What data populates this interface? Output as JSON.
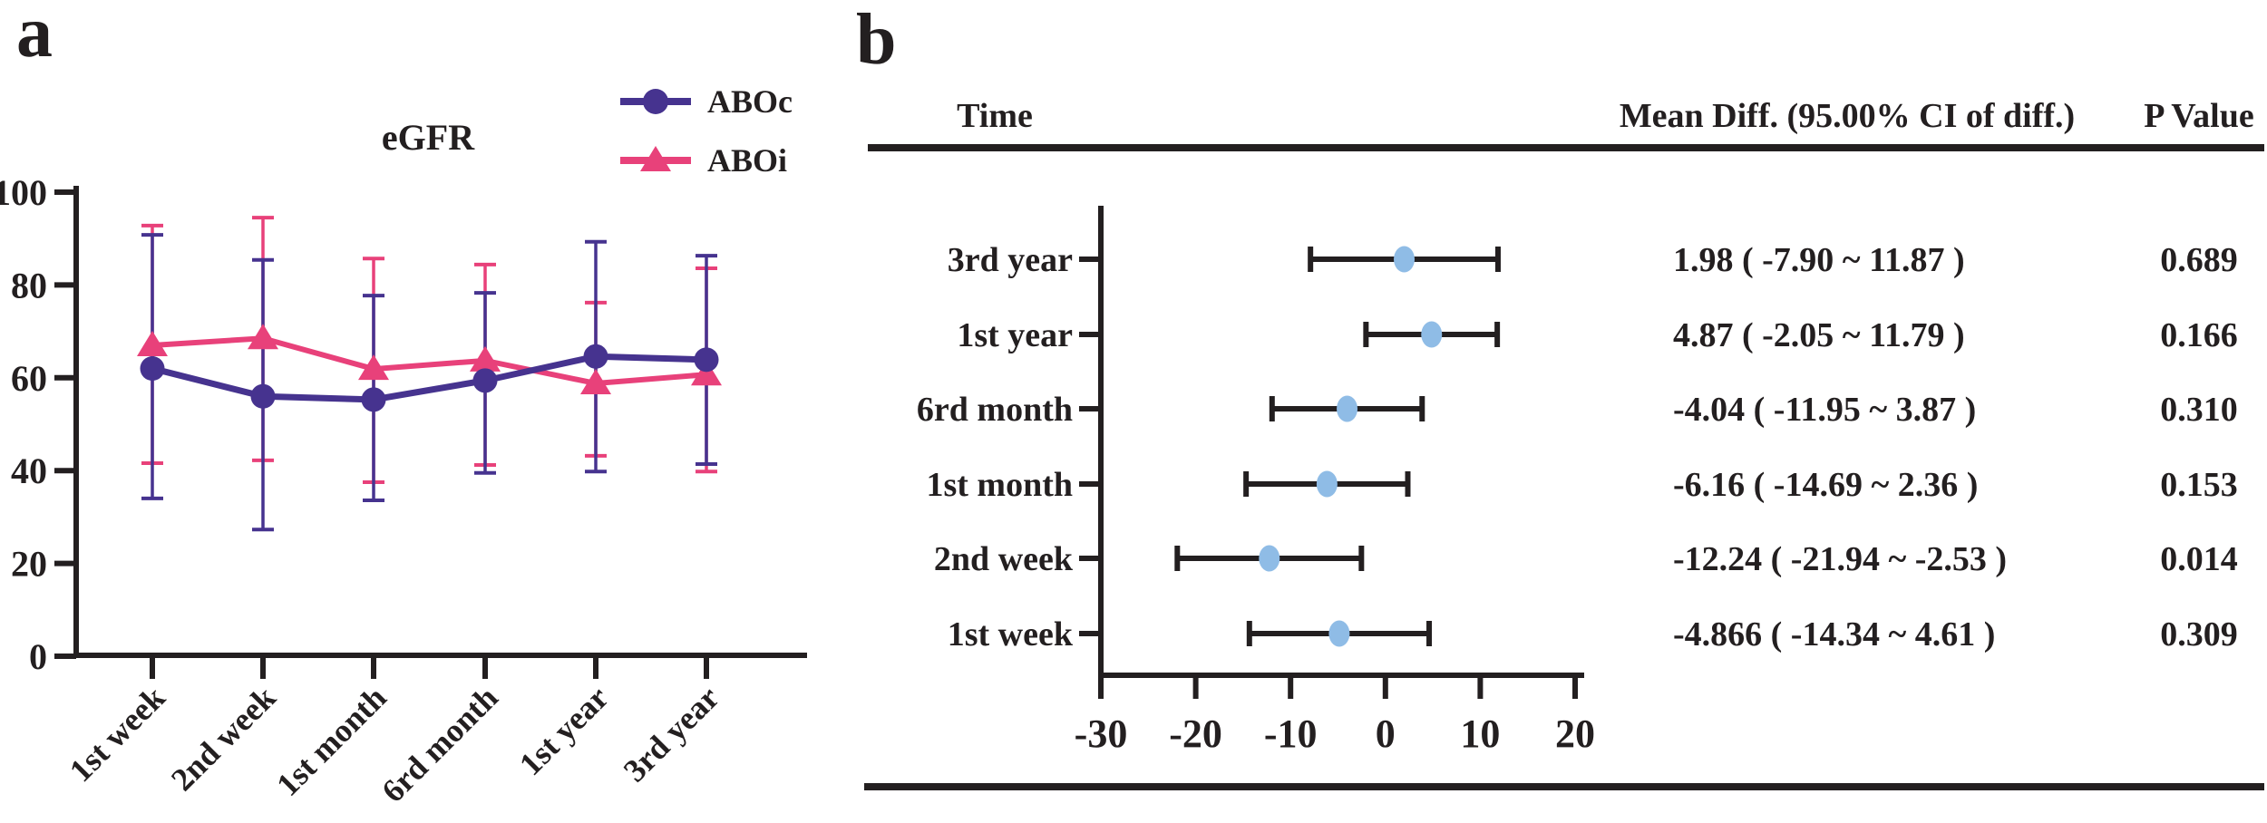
{
  "figure": {
    "panel_a_label": "a",
    "panel_b_label": "b"
  },
  "colors": {
    "aboc_purple": "#46338f",
    "aboi_pink": "#e8417a",
    "forest_dot_blue": "#8fbce6",
    "ink_black": "#231f20"
  },
  "chart_data": [
    {
      "id": "egfr_line_chart",
      "type": "line",
      "title": "eGFR",
      "categories": [
        "1st week",
        "2nd week",
        "1st month",
        "6rd month",
        "1st year",
        "3rd year"
      ],
      "ylim": [
        0,
        100
      ],
      "yticks": [
        0,
        20,
        40,
        60,
        80,
        100
      ],
      "legend_position": "top-right",
      "grid": false,
      "series": [
        {
          "name": "ABOi",
          "marker": "triangle",
          "color_key": "aboi_pink",
          "values": [
            67,
            68.5,
            61.9,
            63.7,
            58.8,
            60.7
          ],
          "upper": [
            92.8,
            94.5,
            85.7,
            84.4,
            76.2,
            83.6
          ],
          "lower": [
            41.6,
            42.2,
            37.5,
            41.2,
            43.2,
            39.8
          ]
        },
        {
          "name": "ABOc",
          "marker": "circle",
          "color_key": "aboc_purple",
          "values": [
            62,
            56,
            55.3,
            59.4,
            64.6,
            63.9
          ],
          "upper": [
            90.8,
            85.4,
            77.7,
            78.3,
            89.3,
            86.3
          ],
          "lower": [
            34,
            27.3,
            33.6,
            39.5,
            39.8,
            41.4
          ]
        }
      ]
    },
    {
      "id": "forest_plot",
      "type": "scatter",
      "columns": {
        "time": "Time",
        "mean_diff": "Mean Diff. (95.00% CI of diff.)",
        "p_value": "P Value"
      },
      "xlim": [
        -30,
        20
      ],
      "xticks": [
        -30,
        -20,
        -10,
        0,
        10,
        20
      ],
      "rows": [
        {
          "time": "3rd year",
          "mean": 1.98,
          "ci_low": -7.9,
          "ci_high": 11.87,
          "label": "1.98 ( -7.90 ~ 11.87 )",
          "p": "0.689"
        },
        {
          "time": "1st year",
          "mean": 4.87,
          "ci_low": -2.05,
          "ci_high": 11.79,
          "label": "4.87 ( -2.05 ~ 11.79 )",
          "p": "0.166"
        },
        {
          "time": "6rd month",
          "mean": -4.04,
          "ci_low": -11.95,
          "ci_high": 3.87,
          "label": "-4.04 ( -11.95 ~ 3.87 )",
          "p": "0.310"
        },
        {
          "time": "1st month",
          "mean": -6.16,
          "ci_low": -14.69,
          "ci_high": 2.36,
          "label": "-6.16 ( -14.69 ~ 2.36 )",
          "p": "0.153"
        },
        {
          "time": "2nd week",
          "mean": -12.24,
          "ci_low": -21.94,
          "ci_high": -2.53,
          "label": "-12.24 ( -21.94 ~ -2.53 )",
          "p": "0.014"
        },
        {
          "time": "1st week",
          "mean": -4.866,
          "ci_low": -14.34,
          "ci_high": 4.61,
          "label": "-4.866 ( -14.34 ~ 4.61 )",
          "p": "0.309"
        }
      ]
    }
  ]
}
